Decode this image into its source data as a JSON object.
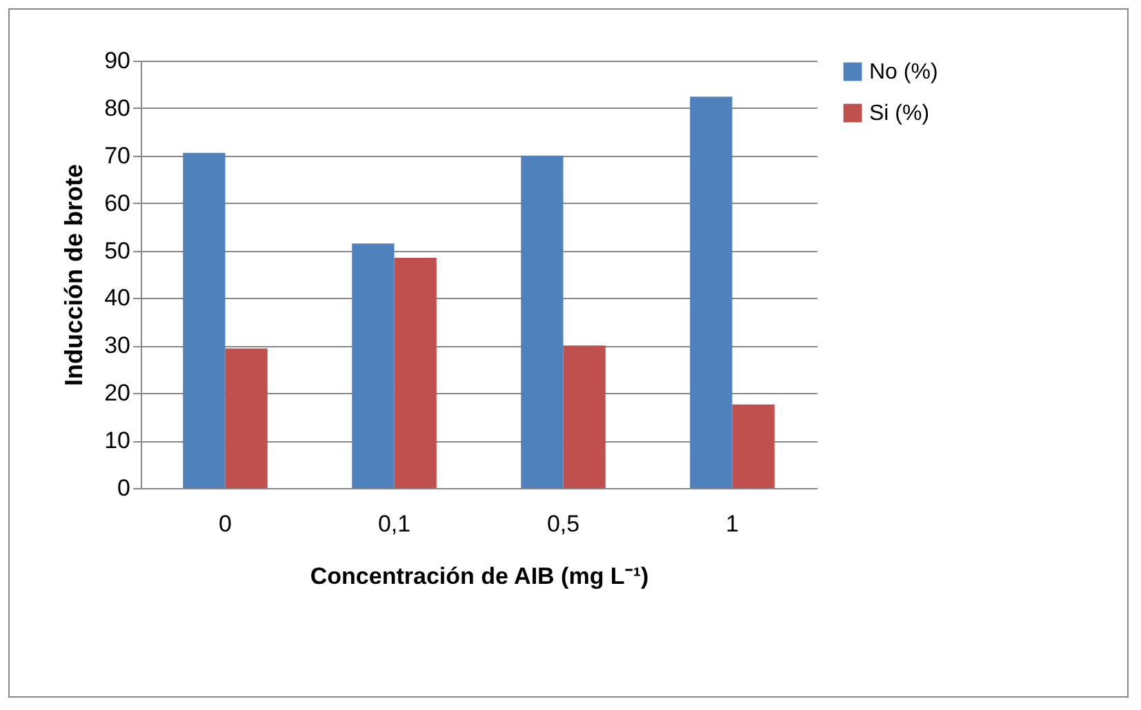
{
  "chart_data": {
    "type": "bar",
    "xlabel": "Concentración de AIB (mg L⁻¹)",
    "ylabel": "Inducción de brote",
    "categories": [
      "0",
      "0,1",
      "0,5",
      "1"
    ],
    "series": [
      {
        "name": "No (%)",
        "color": "#4f81bd",
        "values": [
          70.6,
          51.5,
          70,
          82.4
        ]
      },
      {
        "name": "Si (%)",
        "color": "#c0504d",
        "values": [
          29.4,
          48.5,
          30,
          17.6
        ]
      }
    ],
    "ylim": [
      0,
      90
    ],
    "yticks": [
      0,
      10,
      20,
      30,
      40,
      50,
      60,
      70,
      80,
      90
    ],
    "grid": "y",
    "legend": "right"
  }
}
